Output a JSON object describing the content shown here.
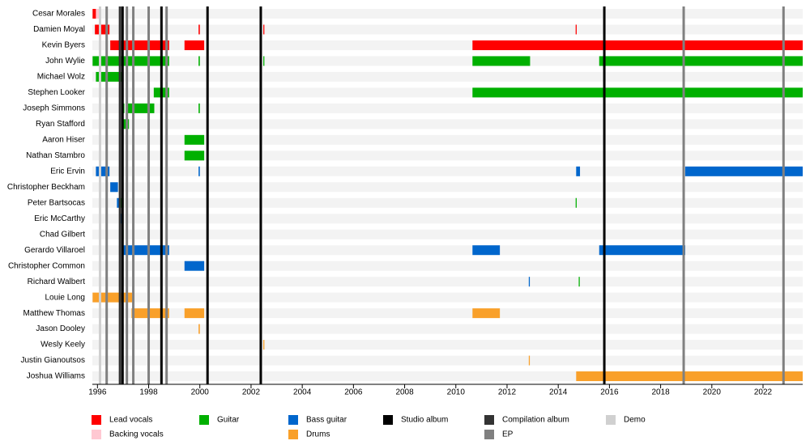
{
  "chart_data": {
    "type": "timeline",
    "categories": [
      "Cesar Morales",
      "Damien Moyal",
      "Kevin Byers",
      "John Wylie",
      "Michael Wolz",
      "Stephen Looker",
      "Joseph Simmons",
      "Ryan Stafford",
      "Aaron Hiser",
      "Nathan Stambro",
      "Eric Ervin",
      "Christopher Beckham",
      "Peter Bartsocas",
      "Eric McCarthy",
      "Chad Gilbert",
      "Gerardo Villaroel",
      "Christopher Common",
      "Richard Walbert",
      "Louie Long",
      "Matthew Thomas",
      "Jason Dooley",
      "Wesly Keely",
      "Justin Gianoutsos",
      "Joshua Williams"
    ],
    "series": [
      {
        "name": "Lead vocals",
        "color": "#ff0000",
        "values": [
          [
            [
              1995.81,
              1995.94
            ]
          ],
          [
            [
              1995.9,
              1996.47
            ],
            [
              1999.95,
              2000.0
            ],
            [
              2002.48,
              2002.52
            ],
            [
              2014.68,
              2014.72
            ]
          ],
          [
            [
              1996.5,
              1998.8
            ],
            [
              1999.4,
              2000.17
            ],
            [
              2010.65,
              2023.55
            ]
          ],
          [],
          [],
          [],
          [],
          [],
          [],
          [],
          [],
          [],
          [],
          [],
          [],
          [],
          [],
          [],
          [],
          [],
          [],
          [],
          [],
          []
        ]
      },
      {
        "name": "Backing vocals",
        "color": "#ffc8d2",
        "values": [
          [
            [
              1995.94,
              1996.06
            ]
          ],
          [],
          [],
          [],
          [],
          [],
          [],
          [],
          [],
          [],
          [],
          [],
          [],
          [],
          [],
          [],
          [],
          [],
          [],
          [],
          [],
          [],
          [],
          []
        ]
      },
      {
        "name": "Guitar",
        "color": "#00b000",
        "values": [
          [],
          [],
          [],
          [
            [
              1995.81,
              1998.8
            ],
            [
              1999.95,
              2000.0
            ],
            [
              2002.48,
              2002.52
            ],
            [
              2010.65,
              2012.9
            ],
            [
              2015.6,
              2023.55
            ]
          ],
          [
            [
              1995.94,
              1996.98
            ]
          ],
          [
            [
              1998.2,
              1998.8
            ],
            [
              2010.65,
              2023.55
            ]
          ],
          [
            [
              1997.0,
              1997.05
            ],
            [
              1997.17,
              1998.22
            ],
            [
              1999.95,
              2000.0
            ]
          ],
          [
            [
              1997.0,
              1997.23
            ]
          ],
          [
            [
              1999.4,
              2000.17
            ]
          ],
          [
            [
              1999.4,
              2000.17
            ]
          ],
          [],
          [],
          [
            [
              1996.92,
              1997.02
            ],
            [
              2014.68,
              2014.72
            ]
          ],
          [],
          [
            [
              1996.98,
              1997.02
            ]
          ],
          [],
          [],
          [
            [
              2014.8,
              2014.84
            ]
          ],
          [],
          [],
          [],
          [],
          [],
          []
        ]
      },
      {
        "name": "Bass guitar",
        "color": "#0066cc",
        "values": [
          [],
          [],
          [],
          [],
          [],
          [],
          [],
          [],
          [],
          [],
          [
            [
              1995.94,
              1996.47
            ],
            [
              1999.95,
              2000.0
            ],
            [
              2014.7,
              2014.85
            ],
            [
              2018.96,
              2023.55
            ]
          ],
          [
            [
              1996.5,
              1996.8
            ]
          ],
          [
            [
              1996.76,
              1996.92
            ]
          ],
          [
            [
              1996.88,
              1997.0
            ]
          ],
          [],
          [
            [
              1996.98,
              1998.8
            ],
            [
              2010.65,
              2011.72
            ],
            [
              2015.6,
              2018.96
            ]
          ],
          [
            [
              1999.4,
              2000.17
            ]
          ],
          [
            [
              2012.85,
              2012.89
            ]
          ],
          [],
          [],
          [],
          [],
          [],
          []
        ]
      },
      {
        "name": "Drums",
        "color": "#f9a02a",
        "values": [
          [],
          [],
          [],
          [],
          [],
          [],
          [],
          [],
          [],
          [],
          [],
          [],
          [],
          [],
          [],
          [],
          [],
          [],
          [
            [
              1995.81,
              1997.36
            ]
          ],
          [
            [
              1997.33,
              1998.8
            ],
            [
              1999.4,
              2000.17
            ],
            [
              2010.65,
              2011.72
            ]
          ],
          [
            [
              1999.95,
              2000.0
            ]
          ],
          [
            [
              2002.48,
              2002.52
            ]
          ],
          [
            [
              2012.85,
              2012.89
            ]
          ],
          [
            [
              2014.7,
              2023.55
            ]
          ]
        ]
      }
    ],
    "events": [
      {
        "name": "Studio album",
        "color": "#000000",
        "values": [
          1996.98,
          1998.5,
          2000.3,
          2002.38,
          2015.8
        ]
      },
      {
        "name": "Compilation album",
        "color": "#333333",
        "values": [
          1996.88
        ]
      },
      {
        "name": "EP",
        "color": "#808080",
        "values": [
          1996.36,
          1997.15,
          1997.4,
          1998.0,
          1998.7,
          2018.9,
          2022.8
        ]
      },
      {
        "name": "Demo",
        "color": "#d0d0d0",
        "values": [
          1996.1
        ]
      }
    ],
    "xlim": [
      1995.8,
      2023.55
    ],
    "xticks": [
      1996,
      1998,
      2000,
      2002,
      2004,
      2006,
      2008,
      2010,
      2012,
      2014,
      2016,
      2018,
      2020,
      2022
    ]
  }
}
